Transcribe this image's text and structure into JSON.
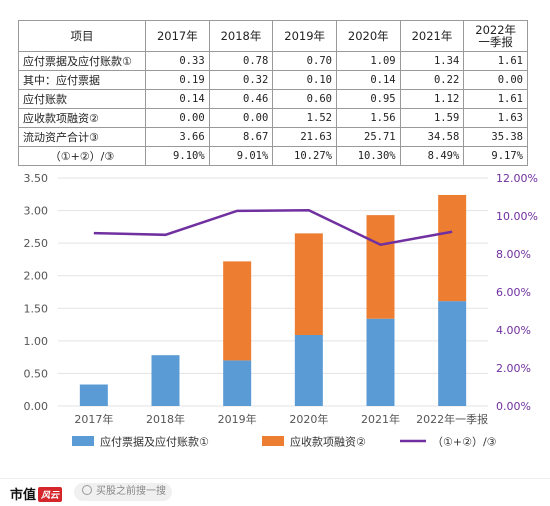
{
  "table": {
    "header": [
      "项目",
      "2017年",
      "2018年",
      "2019年",
      "2020年",
      "2021年",
      "2022年一季报"
    ],
    "rows": [
      {
        "label": "应付票据及应付账款①",
        "values": [
          "0.33",
          "0.78",
          "0.70",
          "1.09",
          "1.34",
          "1.61"
        ]
      },
      {
        "label": "其中：应付票据",
        "values": [
          "0.19",
          "0.32",
          "0.10",
          "0.14",
          "0.22",
          "0.00"
        ]
      },
      {
        "label": "应付账款",
        "values": [
          "0.14",
          "0.46",
          "0.60",
          "0.95",
          "1.12",
          "1.61"
        ]
      },
      {
        "label": "应收款项融资②",
        "values": [
          "0.00",
          "0.00",
          "1.52",
          "1.56",
          "1.59",
          "1.63"
        ]
      },
      {
        "label": "流动资产合计③",
        "values": [
          "3.66",
          "8.67",
          "21.63",
          "25.71",
          "34.58",
          "35.38"
        ]
      },
      {
        "label": "（①+②）/③",
        "values": [
          "9.10%",
          "9.01%",
          "10.27%",
          "10.30%",
          "8.49%",
          "9.17%"
        ]
      }
    ]
  },
  "chart_data": {
    "type": "bar",
    "stacked": true,
    "categories": [
      "2017年",
      "2018年",
      "2019年",
      "2020年",
      "2021年",
      "2022年一季报"
    ],
    "series": [
      {
        "name": "应付票据及应付账款①",
        "values": [
          0.33,
          0.78,
          0.7,
          1.09,
          1.34,
          1.61
        ],
        "color": "#5b9bd5",
        "axis": "left",
        "kind": "bar"
      },
      {
        "name": "应收款项融资②",
        "values": [
          0.0,
          0.0,
          1.52,
          1.56,
          1.59,
          1.63
        ],
        "color": "#ed7d31",
        "axis": "left",
        "kind": "bar"
      },
      {
        "name": "（①+②）/③",
        "values": [
          9.1,
          9.01,
          10.27,
          10.3,
          8.49,
          9.17
        ],
        "color": "#7030a0",
        "axis": "right",
        "kind": "line"
      }
    ],
    "ylim": [
      0,
      3.5
    ],
    "yticks": [
      "0.00",
      "0.50",
      "1.00",
      "1.50",
      "2.00",
      "2.50",
      "3.00",
      "3.50"
    ],
    "y2lim": [
      0,
      12
    ],
    "y2ticks": [
      "0.00%",
      "2.00%",
      "4.00%",
      "6.00%",
      "8.00%",
      "10.00%",
      "12.00%"
    ],
    "grid": true,
    "legend_position": "bottom"
  },
  "watermark": "市值风云",
  "footer": {
    "logo_text": "市值",
    "logo_mark": "风云",
    "search_placeholder": "买股之前搜一搜"
  }
}
